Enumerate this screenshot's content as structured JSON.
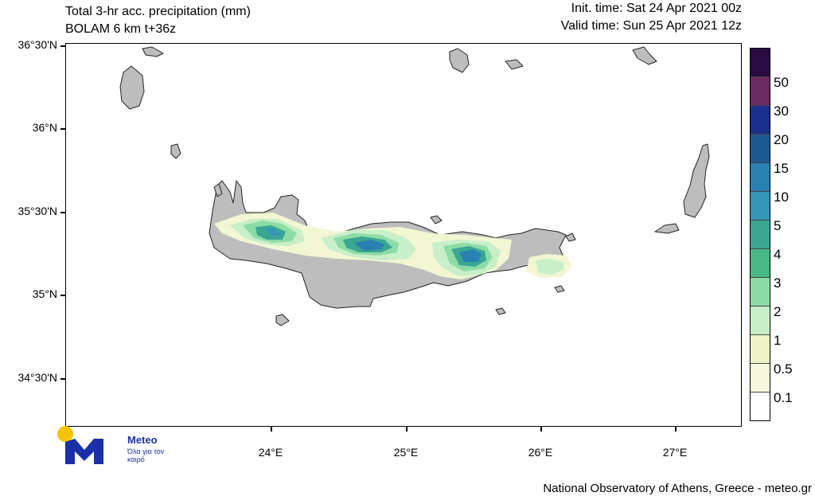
{
  "header": {
    "title_line1": "Total 3-hr acc. precipitation (mm)",
    "title_line2": "BOLAM 6 km t+36z",
    "init_time": "Init. time: Sat 24 Apr 2021 00z",
    "valid_time": "Valid time: Sun 25 Apr 2021 12z"
  },
  "map": {
    "lat_labels": [
      "36°30'N",
      "36°N",
      "35°30'N",
      "35°N",
      "34°30'N"
    ],
    "lon_labels": [
      "24°E",
      "25°E",
      "26°E",
      "27°E"
    ],
    "land_color": "#bdbdbd",
    "sea_color": "#ffffff"
  },
  "legend": {
    "levels": [
      "50",
      "30",
      "20",
      "15",
      "10",
      "5",
      "4",
      "3",
      "2",
      "1",
      "0.5",
      "0.1"
    ],
    "colors": [
      "#2a0a40",
      "#6b2a62",
      "#1b2f8c",
      "#1c5a90",
      "#2a7fb3",
      "#3596b8",
      "#3aa692",
      "#47b886",
      "#8ddca6",
      "#c8efc8",
      "#eef4c6",
      "#f6f8dc",
      "#ffffff"
    ]
  },
  "logo": {
    "brand": "Meteo",
    "tagline": "Όλα για τον καιρό"
  },
  "footer": {
    "credit": "National Observatory of Athens, Greece - meteo.gr"
  }
}
